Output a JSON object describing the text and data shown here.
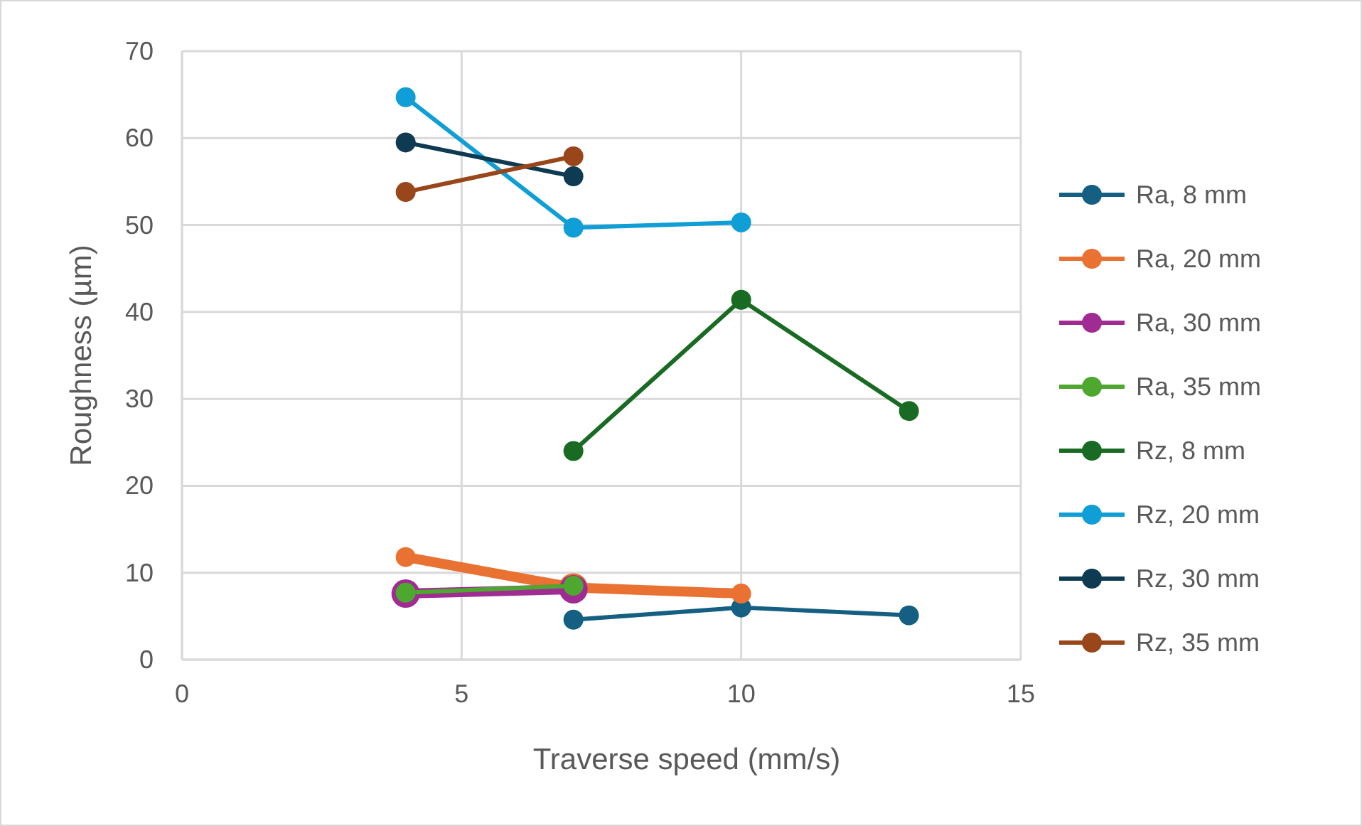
{
  "chart_data": {
    "type": "line",
    "xlabel": "Traverse speed (mm/s)",
    "ylabel": "Roughness (µm)",
    "xlim": [
      0,
      15
    ],
    "xticks": [
      0,
      5,
      10,
      15
    ],
    "ylim": [
      0,
      70
    ],
    "yticks": [
      0,
      10,
      20,
      30,
      40,
      50,
      60,
      70
    ],
    "grid": true,
    "legend": "right",
    "marker": "circle",
    "line_style": "solid",
    "series": [
      {
        "name": "Ra, 8 mm",
        "color": "#156082",
        "x": [
          7,
          10,
          13
        ],
        "values": [
          4.6,
          6.0,
          5.1
        ]
      },
      {
        "name": "Ra, 20 mm",
        "color": "#e97132",
        "x": [
          4,
          7,
          10
        ],
        "values": [
          11.8,
          8.3,
          7.6
        ]
      },
      {
        "name": "Ra, 30 mm",
        "color": "#a02b93",
        "x": [
          4,
          7
        ],
        "values": [
          7.6,
          8.1
        ]
      },
      {
        "name": "Ra, 35 mm",
        "color": "#4ea72e",
        "x": [
          4,
          7
        ],
        "values": [
          7.7,
          8.5
        ]
      },
      {
        "name": "Rz, 8 mm",
        "color": "#196b24",
        "x": [
          7,
          10,
          13
        ],
        "values": [
          24.0,
          41.4,
          28.6
        ]
      },
      {
        "name": "Rz, 20 mm",
        "color": "#0f9ed5",
        "x": [
          4,
          7,
          10
        ],
        "values": [
          64.7,
          49.7,
          50.3
        ]
      },
      {
        "name": "Rz, 30 mm",
        "color": "#0e3a52",
        "x": [
          4,
          7
        ],
        "values": [
          59.5,
          55.6
        ]
      },
      {
        "name": "Rz, 35 mm",
        "color": "#98461a",
        "x": [
          4,
          7
        ],
        "values": [
          53.8,
          57.9
        ]
      }
    ]
  }
}
